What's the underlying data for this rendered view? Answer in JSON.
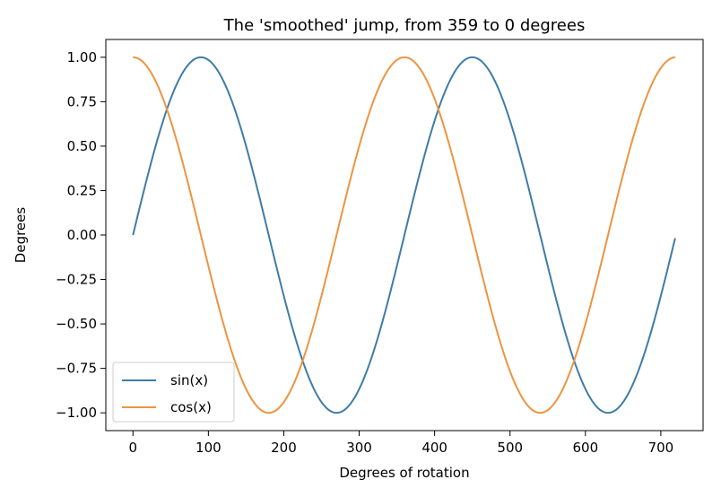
{
  "chart_data": {
    "type": "line",
    "title": "The 'smoothed' jump, from 359 to 0 degrees",
    "xlabel": "Degrees of rotation",
    "ylabel": "Degrees",
    "xlim": [
      -36,
      756
    ],
    "ylim": [
      -1.1,
      1.1
    ],
    "xticks": [
      0,
      100,
      200,
      300,
      400,
      500,
      600,
      700
    ],
    "xtick_labels": [
      "0",
      "100",
      "200",
      "300",
      "400",
      "500",
      "600",
      "700"
    ],
    "yticks": [
      1.0,
      0.75,
      0.5,
      0.25,
      0.0,
      -0.25,
      -0.5,
      -0.75,
      -1.0
    ],
    "ytick_labels": [
      "1.00",
      "0.75",
      "0.50",
      "0.25",
      "0.00",
      "−0.25",
      "−0.50",
      "−0.75",
      "−1.00"
    ],
    "x_range": [
      0,
      719
    ],
    "grid": false,
    "legend_position": "lower-left",
    "series": [
      {
        "name": "sin(x)",
        "function": "sin",
        "color": "#3f7ca7"
      },
      {
        "name": "cos(x)",
        "function": "cos",
        "color": "#ed9440"
      }
    ]
  }
}
